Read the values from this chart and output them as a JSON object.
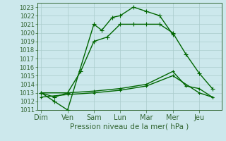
{
  "lines": [
    {
      "x": [
        0,
        0.5,
        1,
        2,
        2.3,
        2.7,
        3,
        3.5,
        4,
        4.5,
        5
      ],
      "y": [
        1013,
        1012,
        1011,
        1021,
        1020.3,
        1021.8,
        1022,
        1023,
        1022.5,
        1022,
        1019.8
      ],
      "color": "#006600",
      "marker": "+",
      "markersize": 4,
      "linewidth": 1.0
    },
    {
      "x": [
        0,
        0.5,
        1,
        1.5,
        2,
        2.5,
        3,
        3.5,
        4,
        4.5,
        5,
        5.5,
        6,
        6.5
      ],
      "y": [
        1013,
        1012.5,
        1013,
        1015.5,
        1019,
        1019.5,
        1021,
        1021,
        1021,
        1021,
        1020,
        1017.5,
        1015.3,
        1013.5
      ],
      "color": "#006600",
      "marker": "+",
      "markersize": 4,
      "linewidth": 1.0
    },
    {
      "x": [
        0,
        1,
        2,
        3,
        4,
        5,
        5.5,
        6,
        6.5
      ],
      "y": [
        1013,
        1013,
        1013.2,
        1013.5,
        1014,
        1015.5,
        1013.8,
        1013.5,
        1012.5
      ],
      "color": "#006600",
      "marker": "+",
      "markersize": 3,
      "linewidth": 1.0
    },
    {
      "x": [
        0,
        1,
        2,
        3,
        4,
        5,
        6,
        6.5
      ],
      "y": [
        1012.5,
        1012.8,
        1013,
        1013.3,
        1013.8,
        1015,
        1013,
        1012.5
      ],
      "color": "#006600",
      "marker": "+",
      "markersize": 3,
      "linewidth": 1.0
    }
  ],
  "ylim": [
    1011,
    1023.5
  ],
  "yticks": [
    1011,
    1012,
    1013,
    1014,
    1015,
    1016,
    1017,
    1018,
    1019,
    1020,
    1021,
    1022,
    1023
  ],
  "xlabel": "Pression niveau de la mer( hPa )",
  "xlabel_fontsize": 7.5,
  "ytick_fontsize": 6,
  "xtick_fontsize": 7,
  "bg_color": "#cce8ec",
  "grid_color": "#b0d4d8",
  "axis_color": "#336633",
  "line_color": "#006600",
  "x_tick_positions": [
    0,
    1,
    2,
    3,
    4,
    5,
    6
  ],
  "x_tick_labels": [
    "Dim",
    "Ven",
    "Sam",
    "Lun",
    "Mar",
    "Mer",
    "Jeu"
  ],
  "xlim": [
    -0.15,
    6.85
  ]
}
